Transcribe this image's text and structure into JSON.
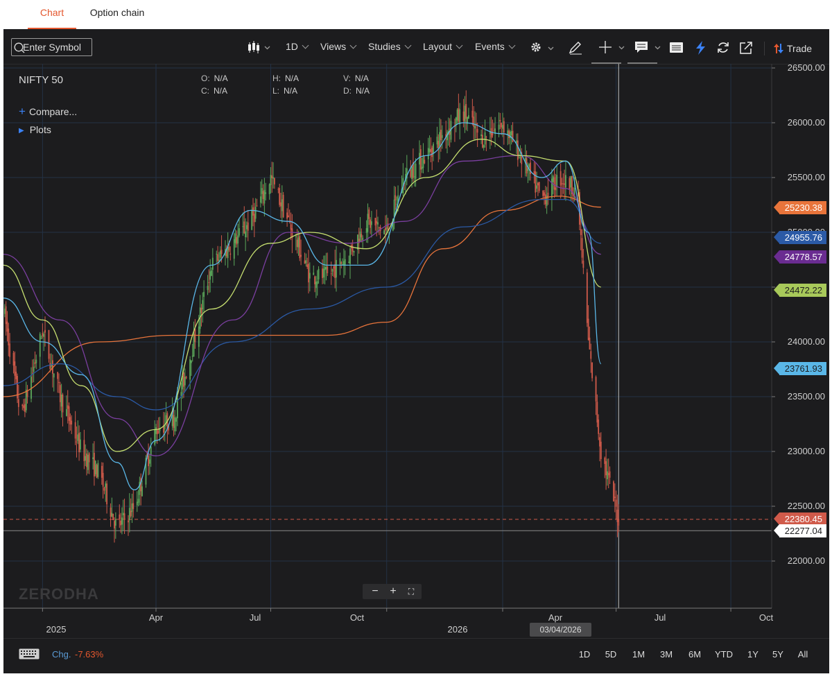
{
  "tabs": [
    {
      "label": "Chart",
      "active": true
    },
    {
      "label": "Option chain",
      "active": false
    }
  ],
  "toolbar": {
    "symbol_placeholder": "Enter Symbol",
    "interval": "1D",
    "views": "Views",
    "studies": "Studies",
    "layout": "Layout",
    "events": "Events",
    "trade": "Trade",
    "icons": [
      "candlestick-icon",
      "gear-icon",
      "pencil-icon",
      "crosshair-icon",
      "comment-icon",
      "table-icon",
      "lightning-icon",
      "refresh-icon",
      "popout-icon",
      "trade-arrows-icon"
    ]
  },
  "instrument": {
    "name": "NIFTY 50",
    "ohlc": {
      "o": "N/A",
      "h": "N/A",
      "v": "N/A",
      "c": "N/A",
      "l": "N/A",
      "d": "N/A"
    },
    "labels": {
      "o": "O:",
      "h": "H:",
      "v": "V:",
      "c": "C:",
      "l": "L:",
      "d": "D:"
    }
  },
  "sidebar": {
    "compare": "Compare...",
    "plots": "Plots"
  },
  "watermark": "ZERODHA",
  "colors": {
    "background": "#1c1c1e",
    "up": "#5ca85b",
    "down": "#d05a4a",
    "accent": "#e4572e",
    "ma_blue": "#5ab7e8",
    "ma_green": "#c6df70",
    "ma_purple": "#7b3fa0",
    "ma_navy": "#2b5aa6",
    "ma_orange": "#e8743b"
  },
  "chart_data": {
    "type": "candlestick",
    "title": "NIFTY 50",
    "interval": "1D",
    "ylim": [
      21700,
      26600
    ],
    "y_ticks": [
      "26500.00",
      "26000.00",
      "25500.00",
      "25000.00",
      "24500.00",
      "24000.00",
      "23500.00",
      "23000.00",
      "22500.00",
      "22000.00"
    ],
    "x_ticks": [
      "Apr",
      "Jul",
      "Oct",
      "Apr",
      "Jul",
      "Oct"
    ],
    "year_labels": [
      "2025",
      "2026"
    ],
    "crosshair_date": "03/04/2026",
    "reference_lines": [
      {
        "value": 22380.45,
        "label": "22380.45",
        "style": "dashed"
      },
      {
        "value": 22277.04,
        "label": "22277.04",
        "style": "solid"
      }
    ],
    "price_labels": [
      {
        "label": "25230.38",
        "color": "#e8743b"
      },
      {
        "label": "24955.76",
        "color": "#2b5aa6"
      },
      {
        "label": "24778.57",
        "color": "#6a2c91"
      },
      {
        "label": "24472.22",
        "color": "#a8c95a"
      },
      {
        "label": "23761.93",
        "color": "#5ab7e8"
      },
      {
        "label": "22380.45",
        "color": "#d05a4a"
      },
      {
        "label": "22277.04",
        "color": "#ffffff"
      }
    ],
    "close_path": {
      "dates": [
        "2024-12-01",
        "2024-12-15",
        "2025-01-01",
        "2025-01-15",
        "2025-02-01",
        "2025-02-15",
        "2025-03-01",
        "2025-03-15",
        "2025-04-01",
        "2025-04-15",
        "2025-05-01",
        "2025-05-15",
        "2025-06-01",
        "2025-06-15",
        "2025-07-01",
        "2025-07-15",
        "2025-08-01",
        "2025-08-15",
        "2025-09-01",
        "2025-09-15",
        "2025-10-01",
        "2025-10-15",
        "2025-11-01",
        "2025-11-15",
        "2025-12-01",
        "2025-12-15",
        "2026-01-01",
        "2026-01-15",
        "2026-02-01",
        "2026-02-15",
        "2026-03-01",
        "2026-03-10",
        "2026-03-20",
        "2026-04-03"
      ],
      "close": [
        24300,
        23300,
        24100,
        23500,
        23000,
        22800,
        22300,
        22500,
        23200,
        23300,
        24000,
        24700,
        24900,
        25100,
        25500,
        25100,
        24600,
        24600,
        24800,
        25100,
        25000,
        25500,
        25700,
        25900,
        26100,
        25850,
        26000,
        25700,
        25300,
        25500,
        25400,
        24000,
        23000,
        22380
      ]
    },
    "series": [
      {
        "name": "",
        "color": "#e8743b",
        "last": 25230.38,
        "dates": [
          "2024-12-01",
          "2025-02-15",
          "2025-04-15",
          "2025-06-15",
          "2025-08-15",
          "2025-10-01",
          "2025-11-15",
          "2026-01-01",
          "2026-02-15",
          "2026-03-20"
        ],
        "values": [
          23500,
          24000,
          24060,
          24060,
          24060,
          24180,
          24850,
          25200,
          25330,
          25230
        ]
      },
      {
        "name": "",
        "color": "#2b5aa6",
        "last": 24955.76,
        "dates": [
          "2024-12-01",
          "2025-01-15",
          "2025-03-01",
          "2025-04-01",
          "2025-06-01",
          "2025-08-01",
          "2025-10-01",
          "2025-12-01",
          "2026-02-01",
          "2026-02-20",
          "2026-03-20"
        ],
        "values": [
          23600,
          23800,
          23500,
          23380,
          24000,
          24300,
          24500,
          25050,
          25300,
          25300,
          24900
        ]
      },
      {
        "name": "",
        "color": "#7b3fa0",
        "last": 24778.57,
        "dates": [
          "2024-12-01",
          "2025-01-15",
          "2025-03-01",
          "2025-04-01",
          "2025-06-01",
          "2025-07-15",
          "2025-09-01",
          "2025-10-15",
          "2025-12-01",
          "2026-01-15",
          "2026-02-20",
          "2026-03-20"
        ],
        "values": [
          24800,
          24200,
          23300,
          22960,
          24200,
          25000,
          24900,
          25100,
          25650,
          25700,
          25400,
          24800
        ]
      },
      {
        "name": "",
        "color": "#c6df70",
        "last": 24472.22,
        "dates": [
          "2024-12-01",
          "2025-01-01",
          "2025-02-01",
          "2025-03-01",
          "2025-04-01",
          "2025-05-15",
          "2025-07-01",
          "2025-08-01",
          "2025-09-15",
          "2025-11-01",
          "2025-12-15",
          "2026-01-15",
          "2026-02-20",
          "2026-03-20"
        ],
        "values": [
          24700,
          24200,
          23600,
          23000,
          23200,
          24300,
          24900,
          25000,
          24850,
          25500,
          25850,
          25700,
          25650,
          24500
        ]
      },
      {
        "name": "",
        "color": "#5ab7e8",
        "last": 23761.93,
        "dates": [
          "2024-12-01",
          "2025-01-01",
          "2025-02-01",
          "2025-03-01",
          "2025-03-15",
          "2025-04-01",
          "2025-05-15",
          "2025-06-15",
          "2025-07-15",
          "2025-08-15",
          "2025-09-15",
          "2025-11-01",
          "2025-12-01",
          "2026-01-01",
          "2026-02-01",
          "2026-02-20",
          "2026-03-10",
          "2026-03-20"
        ],
        "values": [
          24400,
          24000,
          23700,
          22900,
          22650,
          23100,
          24700,
          25200,
          25100,
          24700,
          24700,
          25700,
          26000,
          25900,
          25500,
          25650,
          25000,
          23800
        ]
      }
    ]
  },
  "bottom_bar": {
    "change_label": "Chg.",
    "change_value": "-7.63%",
    "ranges": [
      "1D",
      "5D",
      "1M",
      "3M",
      "6M",
      "YTD",
      "1Y",
      "5Y",
      "All"
    ]
  }
}
